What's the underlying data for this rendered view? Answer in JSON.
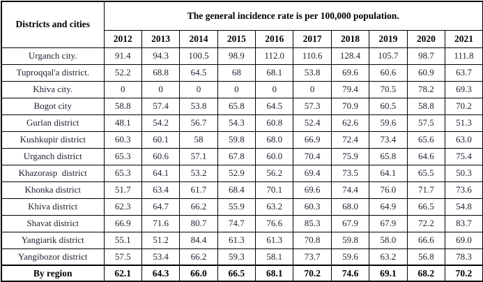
{
  "table": {
    "header": {
      "corner_label": "Districts and cities",
      "title": "The general incidence rate is per 100,000 population.",
      "years": [
        "2012",
        "2013",
        "2014",
        "2015",
        "2016",
        "2017",
        "2018",
        "2019",
        "2020",
        "2021"
      ]
    },
    "rows": [
      {
        "name": "Urganch city.",
        "values": [
          "91.4",
          "94.3",
          "100.5",
          "98.9",
          "112.0",
          "110.6",
          "128.4",
          "105.7",
          "98.7",
          "111.8"
        ]
      },
      {
        "name": "Tuproqqal'a district.",
        "values": [
          "52.2",
          "68.8",
          "64.5",
          "68",
          "68.1",
          "53.8",
          "69.6",
          "60.6",
          "60.9",
          "63.7"
        ]
      },
      {
        "name": "Khiva city.",
        "values": [
          "0",
          "0",
          "0",
          "0",
          "0",
          "0",
          "79.4",
          "70.5",
          "78.2",
          "69.3"
        ]
      },
      {
        "name": "Bogot city",
        "values": [
          "58.8",
          "57.4",
          "53.8",
          "65.8",
          "64.5",
          "57.3",
          "70.9",
          "60.5",
          "58.8",
          "70.2"
        ]
      },
      {
        "name": "Gurlan district",
        "values": [
          "48.1",
          "54.2",
          "56.7",
          "54.3",
          "60.8",
          "52.4",
          "62.6",
          "59.6",
          "57.5",
          "51.3"
        ]
      },
      {
        "name": "Kushkupir district",
        "values": [
          "60.3",
          "60.1",
          "58",
          "59.8",
          "68.0",
          "66.9",
          "72.4",
          "73.4",
          "65.6",
          "63.0"
        ]
      },
      {
        "name": "Urganch district",
        "values": [
          "65.3",
          "60.6",
          "57.1",
          "67.8",
          "60.0",
          "70.4",
          "75.9",
          "65.8",
          "64.6",
          "75.4"
        ]
      },
      {
        "name": "Khazorasp  district",
        "values": [
          "65.3",
          "64.1",
          "53.2",
          "52.9",
          "56.2",
          "69.4",
          "73.5",
          "64.1",
          "65.5",
          "50.3"
        ]
      },
      {
        "name": "Khonka district",
        "values": [
          "51.7",
          "63.4",
          "61.7",
          "68.4",
          "70.1",
          "69.6",
          "74.4",
          "76.0",
          "71.7",
          "73.6"
        ]
      },
      {
        "name": "Khiva district",
        "values": [
          "62.3",
          "64.7",
          "66.2",
          "55.9",
          "63.2",
          "60.3",
          "68.0",
          "64.9",
          "66.5",
          "54.8"
        ]
      },
      {
        "name": "Shavat district",
        "values": [
          "66.9",
          "71.6",
          "80.7",
          "74.7",
          "76.6",
          "85.3",
          "67.9",
          "67.9",
          "72.2",
          "83.7"
        ]
      },
      {
        "name": "Yangiarik district",
        "values": [
          "55.1",
          "51.2",
          "84.4",
          "61.3",
          "61.3",
          "70.8",
          "59.8",
          "58.0",
          "66.6",
          "69.0"
        ]
      },
      {
        "name": "Yangibozor district",
        "values": [
          "57.5",
          "53.4",
          "66.2",
          "59.3",
          "58.1",
          "73.7",
          "59.6",
          "63.2",
          "56.8",
          "78.3"
        ]
      }
    ],
    "footer": {
      "name": "By region",
      "values": [
        "62.1",
        "64.3",
        "66.0",
        "66.5",
        "68.1",
        "70.2",
        "74.6",
        "69.1",
        "68.2",
        "70.2"
      ]
    }
  },
  "colors": {
    "border": "#000000",
    "header_text": "#000000",
    "data_text": "#222233",
    "background": "#ffffff"
  }
}
